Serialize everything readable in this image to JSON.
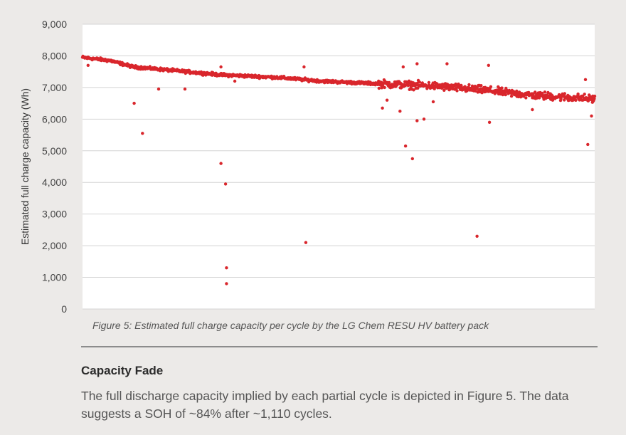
{
  "chart_data": {
    "type": "scatter",
    "title": "",
    "xlabel": "",
    "ylabel": "Estimated full charge capacity (Wh)",
    "ylim": [
      0,
      9000
    ],
    "xlim": [
      0,
      1110
    ],
    "yticks": [
      0,
      1000,
      2000,
      3000,
      4000,
      5000,
      6000,
      7000,
      8000,
      9000
    ],
    "ytick_labels": [
      "0",
      "1,000",
      "2,000",
      "3,000",
      "4,000",
      "5,000",
      "6,000",
      "7,000",
      "8,000",
      "9,000"
    ],
    "grid": "horizontal",
    "color": "#d9262c",
    "trend_points": [
      [
        0,
        7950
      ],
      [
        60,
        7850
      ],
      [
        110,
        7650
      ],
      [
        180,
        7560
      ],
      [
        300,
        7400
      ],
      [
        420,
        7320
      ],
      [
        520,
        7200
      ],
      [
        640,
        7120
      ],
      [
        760,
        7050
      ],
      [
        870,
        6920
      ],
      [
        970,
        6760
      ],
      [
        1110,
        6640
      ]
    ],
    "outliers": [
      [
        12,
        7700
      ],
      [
        112,
        6500
      ],
      [
        130,
        5550
      ],
      [
        165,
        6950
      ],
      [
        222,
        6950
      ],
      [
        300,
        7650
      ],
      [
        300,
        4600
      ],
      [
        310,
        3950
      ],
      [
        312,
        1300
      ],
      [
        312,
        800
      ],
      [
        330,
        7200
      ],
      [
        480,
        7650
      ],
      [
        484,
        2100
      ],
      [
        650,
        6350
      ],
      [
        660,
        6600
      ],
      [
        688,
        6250
      ],
      [
        695,
        7650
      ],
      [
        700,
        5150
      ],
      [
        715,
        4750
      ],
      [
        725,
        5950
      ],
      [
        725,
        7750
      ],
      [
        740,
        6000
      ],
      [
        760,
        6550
      ],
      [
        790,
        7750
      ],
      [
        855,
        2300
      ],
      [
        880,
        7700
      ],
      [
        882,
        5900
      ],
      [
        975,
        6300
      ],
      [
        1055,
        6600
      ],
      [
        1090,
        7250
      ],
      [
        1095,
        5200
      ],
      [
        1103,
        6100
      ]
    ],
    "series": [
      {
        "name": "Estimated full charge capacity per cycle",
        "n_points": 1110
      }
    ]
  },
  "caption": "Figure 5: Estimated full charge capacity per cycle by the LG Chem RESU HV battery pack",
  "section": {
    "heading": "Capacity Fade",
    "body": "The full discharge capacity implied by each partial cycle is depicted in Figure 5. The data suggests a SOH of ~84% after ~1,110 cycles."
  }
}
